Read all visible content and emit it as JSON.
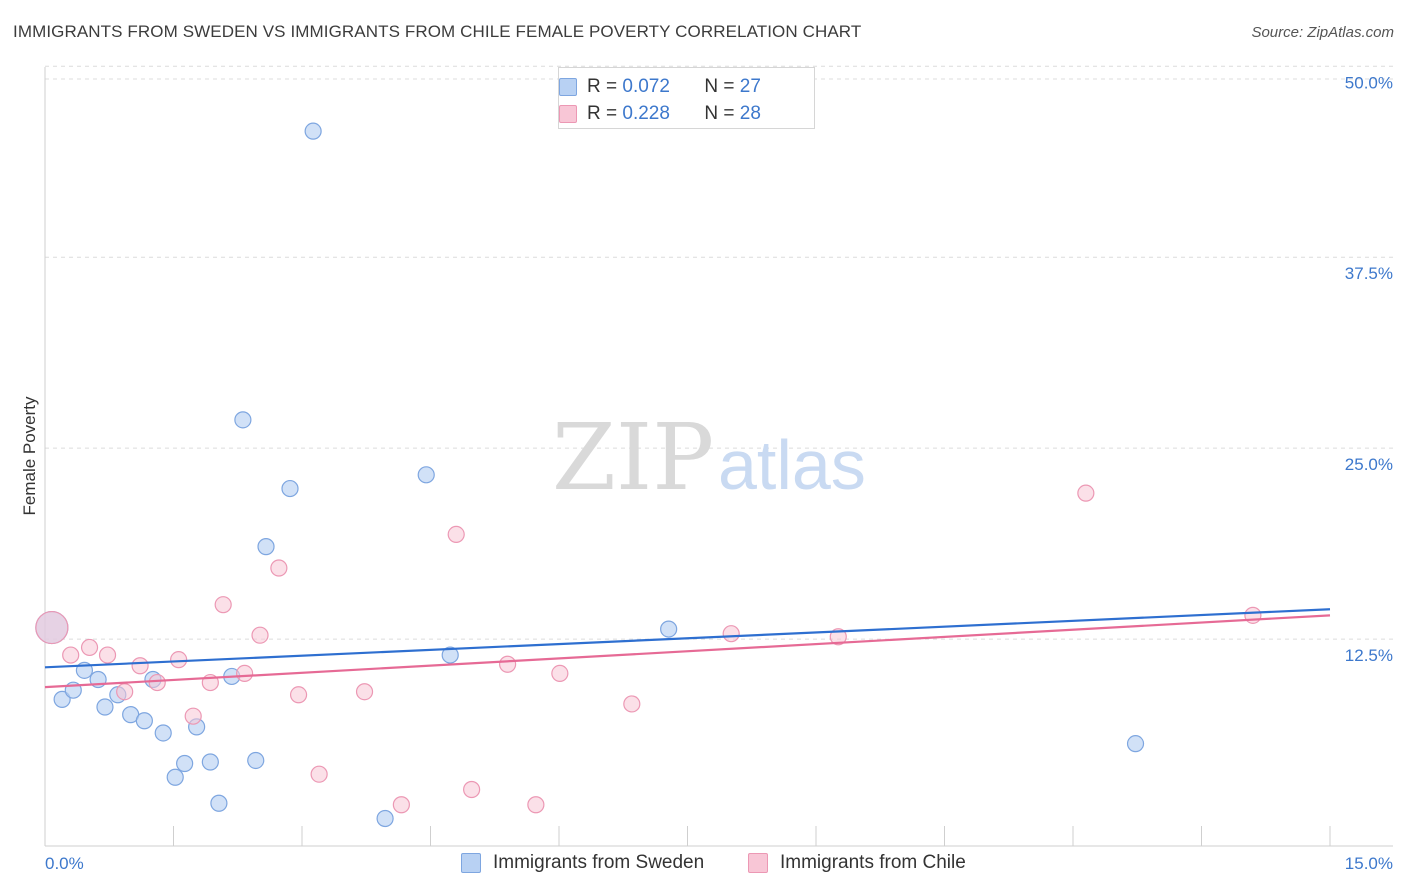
{
  "header": {
    "title": "IMMIGRANTS FROM SWEDEN VS IMMIGRANTS FROM CHILE FEMALE POVERTY CORRELATION CHART",
    "source": "Source: ZipAtlas.com"
  },
  "watermark": {
    "zip": "ZIP",
    "atlas": "atlas"
  },
  "colors": {
    "sweden_fill": "#b8d1f3",
    "sweden_stroke": "#7ea6e0",
    "sweden_line": "#2e6fd0",
    "chile_fill": "#f8c6d6",
    "chile_stroke": "#ec98b4",
    "chile_line": "#e66a95",
    "tick_text": "#3d78cc"
  },
  "legend": {
    "rows": [
      {
        "r_label": "R = ",
        "r_value": "0.072",
        "n_label": "N = ",
        "n_value": "27"
      },
      {
        "r_label": "R = ",
        "r_value": "0.228",
        "n_label": "N = ",
        "n_value": "28"
      }
    ]
  },
  "bottom_legend": {
    "sweden": "Immigrants from Sweden",
    "chile": "Immigrants from Chile"
  },
  "chart_data": {
    "type": "scatter",
    "title": "IMMIGRANTS FROM SWEDEN VS IMMIGRANTS FROM CHILE FEMALE POVERTY CORRELATION CHART",
    "xlabel": "",
    "ylabel": "Female Poverty",
    "xlim": [
      0,
      15
    ],
    "ylim": [
      0,
      51
    ],
    "x_tick_labels": {
      "min": "0.0%",
      "max": "15.0%"
    },
    "y_ticks": [
      {
        "value": 12.5,
        "label": "12.5%"
      },
      {
        "value": 25.0,
        "label": "25.0%"
      },
      {
        "value": 37.5,
        "label": "37.5%"
      },
      {
        "value": 50.0,
        "label": "50.0%"
      }
    ],
    "series": [
      {
        "name": "Immigrants from Sweden",
        "R": 0.072,
        "N": 27,
        "trend": {
          "x": [
            0,
            15
          ],
          "y": [
            11.7,
            15.5
          ]
        },
        "points": [
          {
            "x": 0.08,
            "y": 14.3,
            "big": true
          },
          {
            "x": 0.2,
            "y": 9.6
          },
          {
            "x": 0.33,
            "y": 10.2
          },
          {
            "x": 0.46,
            "y": 11.5
          },
          {
            "x": 0.62,
            "y": 10.9
          },
          {
            "x": 0.7,
            "y": 9.1
          },
          {
            "x": 0.85,
            "y": 9.9
          },
          {
            "x": 1.0,
            "y": 8.6
          },
          {
            "x": 1.16,
            "y": 8.2
          },
          {
            "x": 1.26,
            "y": 10.9
          },
          {
            "x": 1.38,
            "y": 7.4
          },
          {
            "x": 1.52,
            "y": 4.5
          },
          {
            "x": 1.63,
            "y": 5.4
          },
          {
            "x": 1.77,
            "y": 7.8
          },
          {
            "x": 1.93,
            "y": 5.5
          },
          {
            "x": 2.03,
            "y": 2.8
          },
          {
            "x": 2.18,
            "y": 11.1
          },
          {
            "x": 2.31,
            "y": 27.9
          },
          {
            "x": 2.46,
            "y": 5.6
          },
          {
            "x": 2.58,
            "y": 19.6
          },
          {
            "x": 2.86,
            "y": 23.4
          },
          {
            "x": 3.13,
            "y": 46.8
          },
          {
            "x": 3.97,
            "y": 1.8
          },
          {
            "x": 4.45,
            "y": 24.3
          },
          {
            "x": 4.73,
            "y": 12.5
          },
          {
            "x": 7.28,
            "y": 14.2
          },
          {
            "x": 12.73,
            "y": 6.7
          }
        ]
      },
      {
        "name": "Immigrants from Chile",
        "R": 0.228,
        "N": 28,
        "trend": {
          "x": [
            0,
            15
          ],
          "y": [
            10.4,
            15.1
          ]
        },
        "points": [
          {
            "x": 0.08,
            "y": 14.3,
            "big": true
          },
          {
            "x": 0.3,
            "y": 12.5
          },
          {
            "x": 0.52,
            "y": 13.0
          },
          {
            "x": 0.73,
            "y": 12.5
          },
          {
            "x": 0.93,
            "y": 10.1
          },
          {
            "x": 1.11,
            "y": 11.8
          },
          {
            "x": 1.31,
            "y": 10.7
          },
          {
            "x": 1.56,
            "y": 12.2
          },
          {
            "x": 1.73,
            "y": 8.5
          },
          {
            "x": 1.93,
            "y": 10.7
          },
          {
            "x": 2.08,
            "y": 15.8
          },
          {
            "x": 2.33,
            "y": 11.3
          },
          {
            "x": 2.51,
            "y": 13.8
          },
          {
            "x": 2.73,
            "y": 18.2
          },
          {
            "x": 2.96,
            "y": 9.9
          },
          {
            "x": 3.2,
            "y": 4.7
          },
          {
            "x": 3.73,
            "y": 10.1
          },
          {
            "x": 4.16,
            "y": 2.7
          },
          {
            "x": 4.8,
            "y": 20.4
          },
          {
            "x": 4.98,
            "y": 3.7
          },
          {
            "x": 5.4,
            "y": 11.9
          },
          {
            "x": 5.73,
            "y": 2.7
          },
          {
            "x": 6.01,
            "y": 11.3
          },
          {
            "x": 6.85,
            "y": 9.3
          },
          {
            "x": 8.01,
            "y": 13.9
          },
          {
            "x": 9.26,
            "y": 13.7
          },
          {
            "x": 12.15,
            "y": 23.1
          },
          {
            "x": 14.1,
            "y": 15.1
          }
        ]
      }
    ]
  }
}
